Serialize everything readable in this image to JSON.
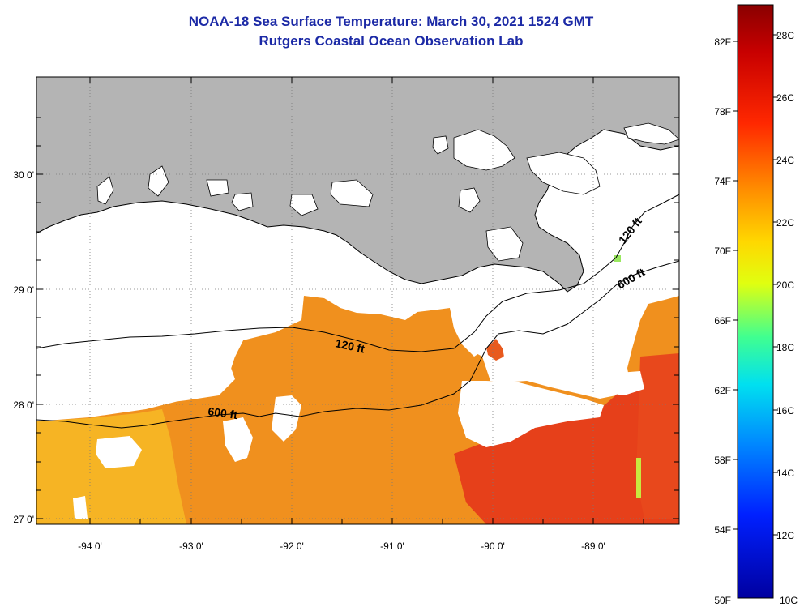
{
  "header": {
    "title": "NOAA-18 Sea Surface Temperature:  March 30, 2021 1524 GMT",
    "subtitle": "Rutgers Coastal Ocean Observation Lab"
  },
  "map": {
    "lat_labels": [
      "30 0'",
      "29 0'",
      "28 0'",
      "27 0'"
    ],
    "lon_labels": [
      "-94 0'",
      "-93 0'",
      "-92 0'",
      "-91 0'",
      "-90 0'",
      "-89 0'"
    ],
    "contours": [
      {
        "label": "120 ft"
      },
      {
        "label": "600 ft"
      },
      {
        "label": "120 ft"
      },
      {
        "label": "600 ft"
      }
    ],
    "colors": {
      "land": "#b4b4b4",
      "no_data": "#ffffff",
      "sst_orange": "#f08a1c",
      "sst_red": "#e8401a",
      "sst_yellow": "#f6b020"
    }
  },
  "colorbar": {
    "fahrenheit_labels": [
      "82F",
      "78F",
      "74F",
      "70F",
      "66F",
      "62F",
      "58F",
      "54F",
      "50F"
    ],
    "celsius_labels": [
      "28C",
      "26C",
      "24C",
      "22C",
      "20C",
      "18C",
      "16C",
      "14C",
      "12C",
      "10C"
    ],
    "range_c": [
      10,
      29
    ],
    "colormap": [
      "#8a0000",
      "#d20000",
      "#ff3000",
      "#ff8c00",
      "#ffdc00",
      "#d8ff20",
      "#50ff80",
      "#00e8e8",
      "#0090ff",
      "#0020ff",
      "#0000b0"
    ]
  }
}
